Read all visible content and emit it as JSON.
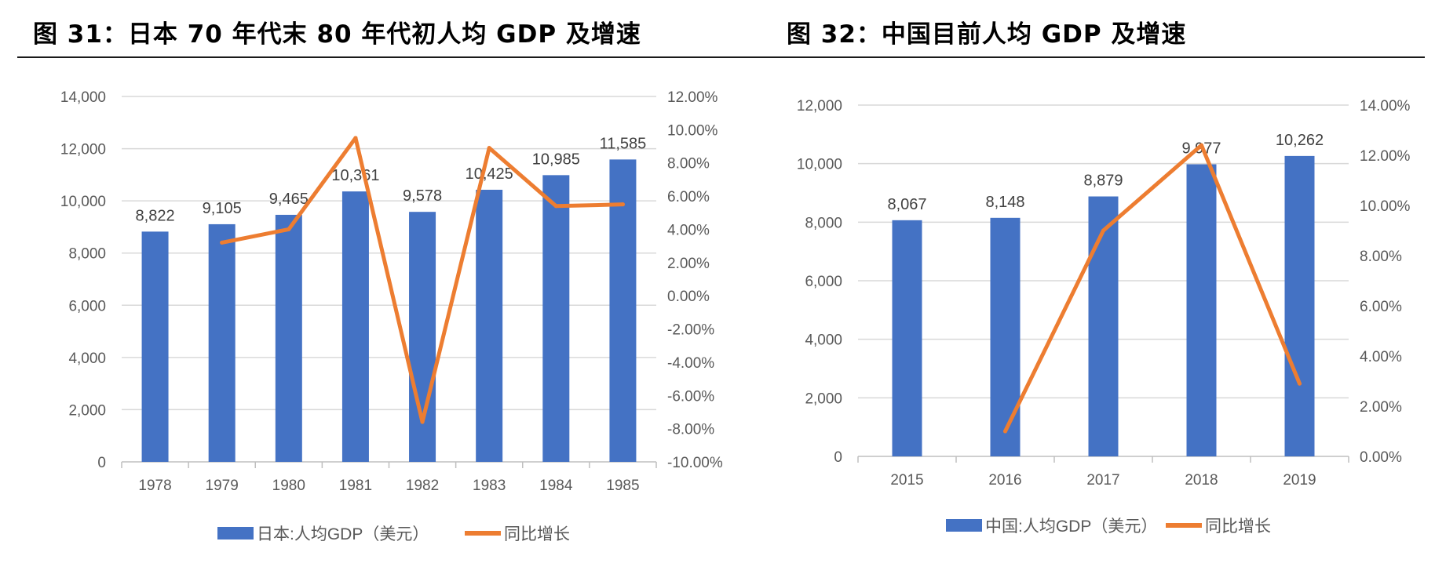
{
  "figures": [
    {
      "title": "图 31：日本 70 年代末 80 年代初人均 GDP 及增速",
      "chart_data": {
        "type": "bar+line",
        "categories": [
          "1978",
          "1979",
          "1980",
          "1981",
          "1982",
          "1983",
          "1984",
          "1985"
        ],
        "series": [
          {
            "name": "日本:人均GDP（美元）",
            "kind": "bar",
            "axis": "left",
            "values": [
              8822,
              9105,
              9465,
              10361,
              9578,
              10425,
              10985,
              11585
            ],
            "labels": [
              "8,822",
              "9,105",
              "9,465",
              "10,361",
              "9,578",
              "10,425",
              "10,985",
              "11,585"
            ],
            "color": "#4472C4"
          },
          {
            "name": "同比增长",
            "kind": "line",
            "axis": "right",
            "values": [
              null,
              3.2,
              4.0,
              9.5,
              -7.6,
              8.9,
              5.4,
              5.5
            ],
            "color": "#ED7D31"
          }
        ],
        "y_left": {
          "min": 0,
          "max": 14000,
          "step": 2000,
          "ticks": [
            "0",
            "2,000",
            "4,000",
            "6,000",
            "8,000",
            "10,000",
            "12,000",
            "14,000"
          ]
        },
        "y_right": {
          "min": -10,
          "max": 12,
          "step": 2,
          "ticks": [
            "-10.00%",
            "-8.00%",
            "-6.00%",
            "-4.00%",
            "-2.00%",
            "0.00%",
            "2.00%",
            "4.00%",
            "6.00%",
            "8.00%",
            "10.00%",
            "12.00%"
          ]
        },
        "legend": [
          "日本:人均GDP（美元）",
          "同比增长"
        ],
        "legend_position": "bottom"
      }
    },
    {
      "title": "图 32：中国目前人均 GDP 及增速",
      "chart_data": {
        "type": "bar+line",
        "categories": [
          "2015",
          "2016",
          "2017",
          "2018",
          "2019"
        ],
        "series": [
          {
            "name": "中国:人均GDP（美元）",
            "kind": "bar",
            "axis": "left",
            "values": [
              8067,
              8148,
              8879,
              9977,
              10262
            ],
            "labels": [
              "8,067",
              "8,148",
              "8,879",
              "9,977",
              "10,262"
            ],
            "color": "#4472C4"
          },
          {
            "name": "同比增长",
            "kind": "line",
            "axis": "right",
            "values": [
              null,
              1.0,
              9.0,
              12.4,
              2.9
            ],
            "color": "#ED7D31"
          }
        ],
        "y_left": {
          "min": 0,
          "max": 12000,
          "step": 2000,
          "ticks": [
            "0",
            "2,000",
            "4,000",
            "6,000",
            "8,000",
            "10,000",
            "12,000"
          ]
        },
        "y_right": {
          "min": 0,
          "max": 14,
          "step": 2,
          "ticks": [
            "0.00%",
            "2.00%",
            "4.00%",
            "6.00%",
            "8.00%",
            "10.00%",
            "12.00%",
            "14.00%"
          ]
        },
        "legend": [
          "中国:人均GDP（美元）",
          "同比增长"
        ],
        "legend_position": "bottom"
      }
    }
  ]
}
